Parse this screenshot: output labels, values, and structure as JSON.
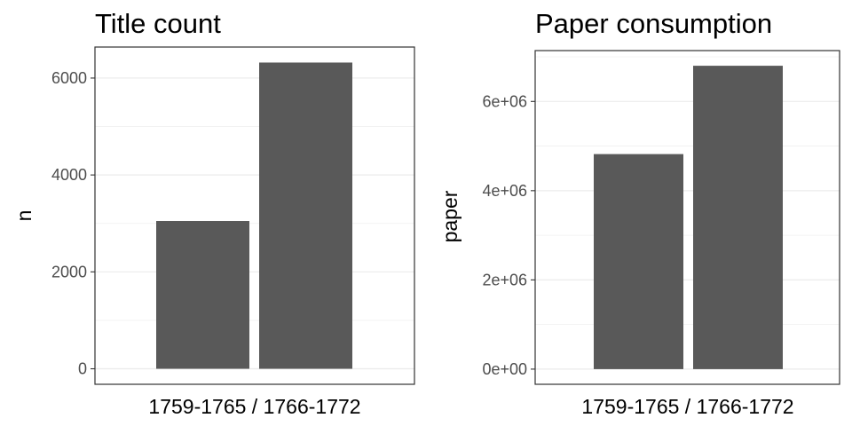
{
  "chart_data": [
    {
      "type": "bar",
      "title": "Title count",
      "ylabel": "n",
      "xlabel": "1759-1765 / 1766-1772",
      "categories": [
        "1759-1765",
        "1766-1772"
      ],
      "values": [
        3050,
        6320
      ],
      "ylim": [
        -320,
        6640
      ],
      "yticks": [
        0,
        2000,
        4000,
        6000
      ],
      "ytick_labels": [
        "0",
        "2000",
        "4000",
        "6000"
      ],
      "grid": true,
      "bar_color": "#595959"
    },
    {
      "type": "bar",
      "title": "Paper consumption",
      "ylabel": "paper",
      "xlabel": "1759-1765 / 1766-1772",
      "categories": [
        "1759-1765",
        "1766-1772"
      ],
      "values": [
        4820000,
        6800000
      ],
      "ylim": [
        -340000,
        7140000
      ],
      "yticks": [
        0,
        2000000,
        4000000,
        6000000
      ],
      "ytick_labels": [
        "0e+00",
        "2e+06",
        "4e+06",
        "6e+06"
      ],
      "grid": true,
      "bar_color": "#595959"
    }
  ]
}
